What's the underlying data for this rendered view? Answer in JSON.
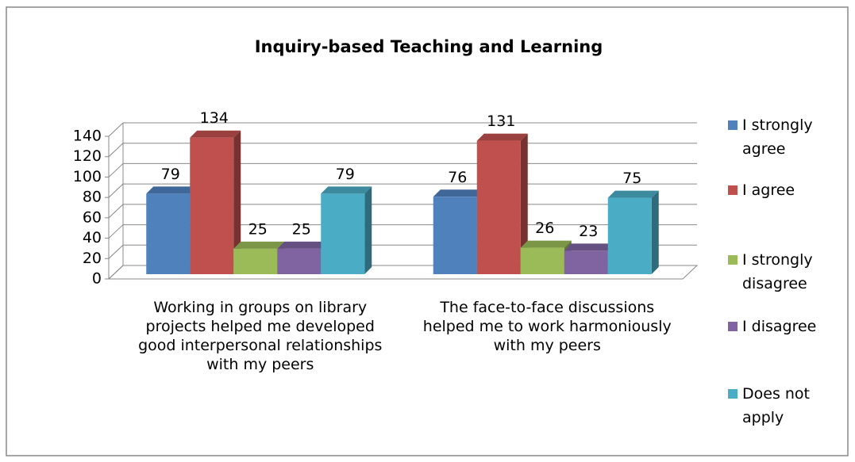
{
  "chart_data": {
    "type": "bar3d",
    "title": "Inquiry-based Teaching and Learning",
    "categories": [
      "Working in groups on library projects helped me developed good interpersonal relationships with my peers",
      "The face-to-face  discussions helped me to work harmoniously with my peers"
    ],
    "series": [
      {
        "name": "I strongly agree",
        "color": "#4f81bd",
        "values": [
          79,
          76
        ]
      },
      {
        "name": "I agree",
        "color": "#c0504d",
        "values": [
          134,
          131
        ]
      },
      {
        "name": "I strongly disagree",
        "color": "#9bbb59",
        "values": [
          25,
          26
        ]
      },
      {
        "name": "I disagree",
        "color": "#8064a2",
        "values": [
          25,
          23
        ]
      },
      {
        "name": "Does not apply",
        "color": "#4bacc6",
        "values": [
          79,
          75
        ]
      }
    ],
    "ylim": [
      0,
      140
    ],
    "yticks": [
      0,
      20,
      40,
      60,
      80,
      100,
      120,
      140
    ],
    "grid": true,
    "legend": "right"
  }
}
